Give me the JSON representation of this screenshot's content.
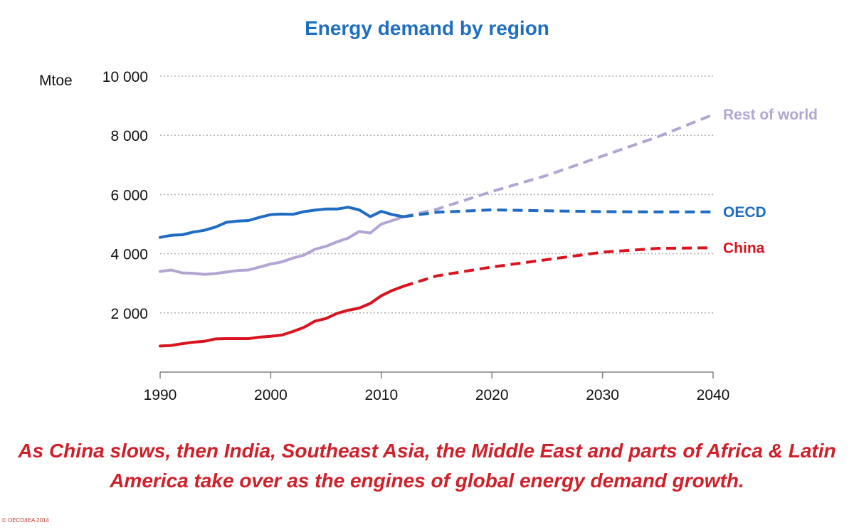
{
  "chart_data": {
    "type": "line",
    "title": "Energy demand by region",
    "ylabel": "Mtoe",
    "xlabel": "",
    "xlim": [
      1990,
      2040
    ],
    "ylim": [
      0,
      10000
    ],
    "x_ticks": [
      {
        "value": 1990,
        "label": "1990"
      },
      {
        "value": 2000,
        "label": "2000"
      },
      {
        "value": 2010,
        "label": "2010"
      },
      {
        "value": 2020,
        "label": "2020"
      },
      {
        "value": 2030,
        "label": "2030"
      },
      {
        "value": 2040,
        "label": "2040"
      }
    ],
    "y_ticks": [
      {
        "value": 2000,
        "label": "2 000"
      },
      {
        "value": 4000,
        "label": "4 000"
      },
      {
        "value": 6000,
        "label": "6 000"
      },
      {
        "value": 8000,
        "label": "8 000"
      },
      {
        "value": 10000,
        "label": "10 000"
      }
    ],
    "grid": "horizontal dotted",
    "projection_start": 2012,
    "series": [
      {
        "name": "Rest of world",
        "color": "#b3a5d3",
        "historical": {
          "x": [
            1990,
            1991,
            1992,
            1993,
            1994,
            1995,
            1996,
            1997,
            1998,
            1999,
            2000,
            2001,
            2002,
            2003,
            2004,
            2005,
            2006,
            2007,
            2008,
            2009,
            2010,
            2011,
            2012
          ],
          "y": [
            3400,
            3450,
            3350,
            3340,
            3300,
            3330,
            3380,
            3430,
            3450,
            3550,
            3650,
            3720,
            3850,
            3950,
            4150,
            4250,
            4400,
            4530,
            4750,
            4700,
            5000,
            5120,
            5250
          ]
        },
        "projection": {
          "x": [
            2012,
            2015,
            2020,
            2025,
            2030,
            2035,
            2040
          ],
          "y": [
            5250,
            5500,
            6100,
            6650,
            7300,
            7950,
            8700
          ]
        }
      },
      {
        "name": "OECD",
        "color": "#1e6cc4",
        "historical": {
          "x": [
            1990,
            1991,
            1992,
            1993,
            1994,
            1995,
            1996,
            1997,
            1998,
            1999,
            2000,
            2001,
            2002,
            2003,
            2004,
            2005,
            2006,
            2007,
            2008,
            2009,
            2010,
            2011,
            2012
          ],
          "y": [
            4550,
            4620,
            4640,
            4730,
            4790,
            4900,
            5060,
            5100,
            5120,
            5230,
            5320,
            5340,
            5330,
            5420,
            5470,
            5510,
            5510,
            5570,
            5480,
            5250,
            5430,
            5320,
            5250
          ]
        },
        "projection": {
          "x": [
            2012,
            2015,
            2020,
            2025,
            2030,
            2035,
            2040
          ],
          "y": [
            5250,
            5400,
            5480,
            5450,
            5420,
            5410,
            5410
          ]
        }
      },
      {
        "name": "China",
        "color": "#d9141e",
        "historical": {
          "x": [
            1990,
            1991,
            1992,
            1993,
            1994,
            1995,
            1996,
            1997,
            1998,
            1999,
            2000,
            2001,
            2002,
            2003,
            2004,
            2005,
            2006,
            2007,
            2008,
            2009,
            2010,
            2011,
            2012
          ],
          "y": [
            880,
            900,
            960,
            1010,
            1040,
            1120,
            1130,
            1130,
            1130,
            1180,
            1210,
            1250,
            1370,
            1510,
            1720,
            1810,
            1980,
            2090,
            2160,
            2320,
            2580,
            2760,
            2900
          ]
        },
        "projection": {
          "x": [
            2012,
            2015,
            2020,
            2025,
            2030,
            2035,
            2040
          ],
          "y": [
            2900,
            3250,
            3550,
            3800,
            4050,
            4180,
            4200
          ]
        }
      }
    ]
  },
  "caption": "As China slows, then India, Southeast Asia, the Middle East and parts of Africa & Latin America take over as the engines of global energy demand growth.",
  "copyright": "© OECD/IEA 2014"
}
